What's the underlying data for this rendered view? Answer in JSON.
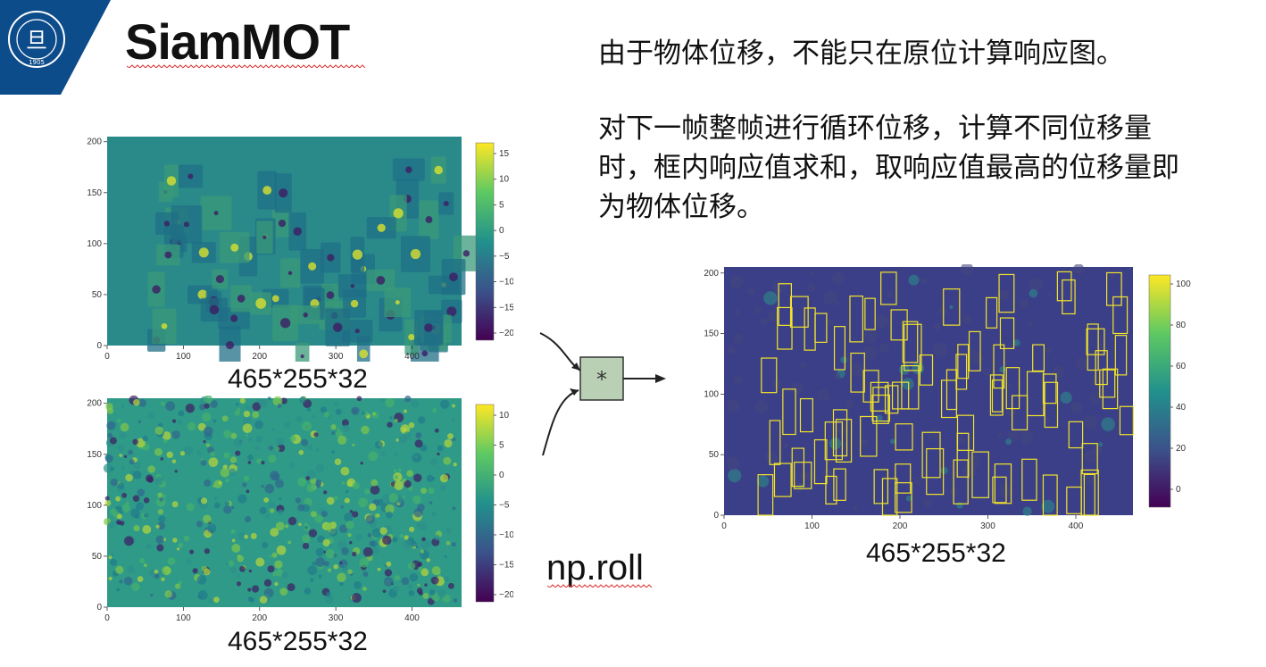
{
  "header": {
    "title": "SiamMOT",
    "logo": {
      "name": "FUDAN UNIVERSITY",
      "year": "1905",
      "icon": "university-seal-icon",
      "band_color": "#0d4c8a"
    }
  },
  "text": {
    "line1": "由于物体位移，不能只在原位计算响应图。",
    "para2": [
      "对下一帧整帧进行循环位移，计算不同位移量",
      "时，框内响应值求和，取响应值最高的位移量即",
      "为物体位移。"
    ]
  },
  "labels": {
    "top_left_dims": "465*255*32",
    "bottom_left_dims": "465*255*32",
    "right_dims": "465*255*32",
    "operator": "*",
    "np_roll": "np.roll"
  },
  "plots": {
    "top_left": {
      "yticks": [
        "200",
        "150",
        "100",
        "50",
        "0"
      ],
      "xticks": [
        "0",
        "100",
        "200",
        "300",
        "400"
      ],
      "colorbar_ticks": [
        "15",
        "10",
        "5",
        "0",
        "−5",
        "−10",
        "−15",
        "−20"
      ]
    },
    "bottom_left": {
      "yticks": [
        "200",
        "150",
        "100",
        "50",
        "0"
      ],
      "xticks": [
        "0",
        "100",
        "200",
        "300",
        "400"
      ],
      "colorbar_ticks": [
        "10",
        "5",
        "0",
        "−5",
        "−10",
        "−15",
        "−20"
      ]
    },
    "right": {
      "yticks": [
        "200",
        "150",
        "100",
        "50",
        "0"
      ],
      "xticks": [
        "0",
        "100",
        "200",
        "300",
        "400"
      ],
      "colorbar_ticks": [
        "100",
        "80",
        "60",
        "40",
        "20",
        "0"
      ],
      "box_color": "#f2e42a"
    }
  }
}
